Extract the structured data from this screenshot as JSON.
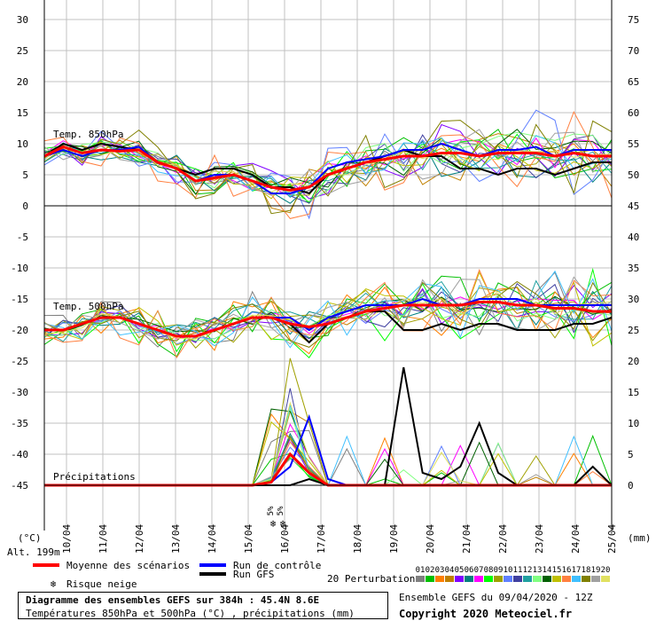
{
  "chart_data": {
    "type": "line",
    "title": "Diagramme des ensembles GEFS sur 384h : 45.4N 8.6E",
    "subtitle": "Températures 850hPa et 500hPa (°C) , précipitations (mm)",
    "ensemble_info": "Ensemble GEFS du 09/04/2020 - 12Z",
    "copyright": "Copyright 2020 Meteociel.fr",
    "altitude": "Alt. 199m",
    "left_unit": "(°C)",
    "right_unit": "(mm)",
    "left_axis_ticks": [
      "30",
      "25",
      "20",
      "15",
      "10",
      "5",
      "0",
      "-5",
      "-10",
      "-15",
      "-20",
      "-25",
      "-30",
      "-35",
      "-40",
      "-45"
    ],
    "left_axis_values": [
      30,
      25,
      20,
      15,
      10,
      5,
      0,
      -5,
      -10,
      -15,
      -20,
      -25,
      -30,
      -35,
      -40,
      -45
    ],
    "right_axis_ticks": [
      "75",
      "70",
      "65",
      "60",
      "55",
      "50",
      "45",
      "40",
      "35",
      "30",
      "25",
      "20",
      "15",
      "10",
      "5",
      "0"
    ],
    "x_tick_labels": [
      "10/04",
      "11/04",
      "12/04",
      "13/04",
      "14/04",
      "15/04",
      "16/04",
      "17/04",
      "18/04",
      "19/04",
      "20/04",
      "21/04",
      "22/04",
      "23/04",
      "24/04",
      "25/04"
    ],
    "panel_labels": {
      "t850": "Temp. 850hPa",
      "t500": "Temp. 500hPa",
      "precip": "Précipitations"
    },
    "legend": {
      "mean": "Moyenne des scénarios",
      "control": "Run de contrôle",
      "gfs": "Run GFS",
      "snow": "Risque neige",
      "perturbations": "20 Perturbations",
      "pert_numbers": [
        "01",
        "02",
        "03",
        "04",
        "05",
        "06",
        "07",
        "08",
        "09",
        "10",
        "11",
        "12",
        "13",
        "14",
        "15",
        "16",
        "17",
        "18",
        "19",
        "20"
      ]
    },
    "colors": {
      "mean": "#ff0000",
      "control": "#0000ff",
      "gfs": "#000000",
      "grid": "#c0c0c0",
      "perturbations": [
        "#7f7f7f",
        "#00c000",
        "#ff7f00",
        "#c08000",
        "#8000ff",
        "#008080",
        "#ff00ff",
        "#00ff00",
        "#a0a000",
        "#6080ff",
        "#4040a0",
        "#20a0a0",
        "#80ff80",
        "#006000",
        "#c0c000",
        "#ff8040",
        "#40c0ff",
        "#808000",
        "#a0a0a0",
        "#e0e060"
      ]
    },
    "x_start_day_offset": 0,
    "t850": {
      "mean": [
        8,
        9.5,
        8.5,
        9,
        8.8,
        9,
        7,
        6,
        4,
        4.5,
        5,
        4,
        3,
        2.5,
        3,
        5,
        6,
        7,
        7.5,
        8,
        8,
        8.5,
        8.5,
        8,
        8.5,
        8.5,
        8.5,
        8,
        8.5,
        8,
        8
      ],
      "control": [
        8,
        9,
        8,
        9,
        9,
        9.5,
        7,
        6,
        4,
        5,
        5,
        4,
        2,
        2,
        3,
        6,
        7,
        7.5,
        8,
        9,
        9,
        10,
        9,
        8,
        9,
        9,
        9.5,
        8,
        9,
        9,
        9
      ],
      "gfs": [
        8,
        10,
        9,
        10,
        9.5,
        9,
        7,
        6,
        5,
        6,
        6,
        5,
        3,
        3,
        2,
        5,
        6,
        7,
        8,
        9,
        8,
        8,
        6,
        6,
        5,
        6,
        6,
        5,
        6,
        7,
        7
      ]
    },
    "t500": {
      "mean": [
        -20,
        -20,
        -19,
        -18,
        -18,
        -19,
        -20,
        -21,
        -21,
        -20,
        -19,
        -18,
        -18,
        -19,
        -19.5,
        -19,
        -18,
        -17,
        -16.5,
        -16,
        -16,
        -16,
        -16,
        -15.5,
        -15.5,
        -16,
        -16,
        -16.5,
        -16.5,
        -17,
        -17
      ],
      "control": [
        -20,
        -20,
        -19,
        -18,
        -18,
        -19,
        -20,
        -21,
        -21,
        -20,
        -19,
        -18,
        -18,
        -18,
        -20,
        -18,
        -17,
        -16,
        -16,
        -16,
        -15,
        -16,
        -16,
        -15,
        -15,
        -15,
        -16,
        -16,
        -16,
        -16,
        -16
      ],
      "gfs": [
        -20,
        -20,
        -19,
        -18,
        -18,
        -19,
        -20,
        -21,
        -21,
        -20,
        -19,
        -18,
        -18,
        -19,
        -22,
        -19,
        -18,
        -17,
        -17,
        -20,
        -20,
        -19,
        -20,
        -19,
        -19,
        -20,
        -20,
        -20,
        -19,
        -19,
        -18
      ]
    },
    "precip": {
      "mean": [
        0,
        0,
        0,
        0,
        0,
        0,
        0,
        0,
        0,
        0,
        0,
        0,
        0.5,
        5,
        2,
        0,
        0,
        0,
        0,
        0,
        0,
        0,
        0,
        0,
        0,
        0,
        0,
        0,
        0,
        0,
        0
      ],
      "control": [
        0,
        0,
        0,
        0,
        0,
        0,
        0,
        0,
        0,
        0,
        0,
        0,
        0.5,
        3,
        11,
        1,
        0,
        0,
        0,
        0,
        0,
        0,
        0,
        0,
        0,
        0,
        0,
        0,
        0,
        0,
        0
      ],
      "gfs": [
        0,
        0,
        0,
        0,
        0,
        0,
        0,
        0,
        0,
        0,
        0,
        0,
        0,
        0,
        1,
        0,
        0,
        0,
        0,
        19,
        2,
        1,
        3,
        10,
        2,
        0,
        0,
        0,
        0,
        3,
        0
      ]
    },
    "snow_markers": [
      {
        "day": "15/04"
      },
      {
        "day": "16/04"
      }
    ]
  }
}
